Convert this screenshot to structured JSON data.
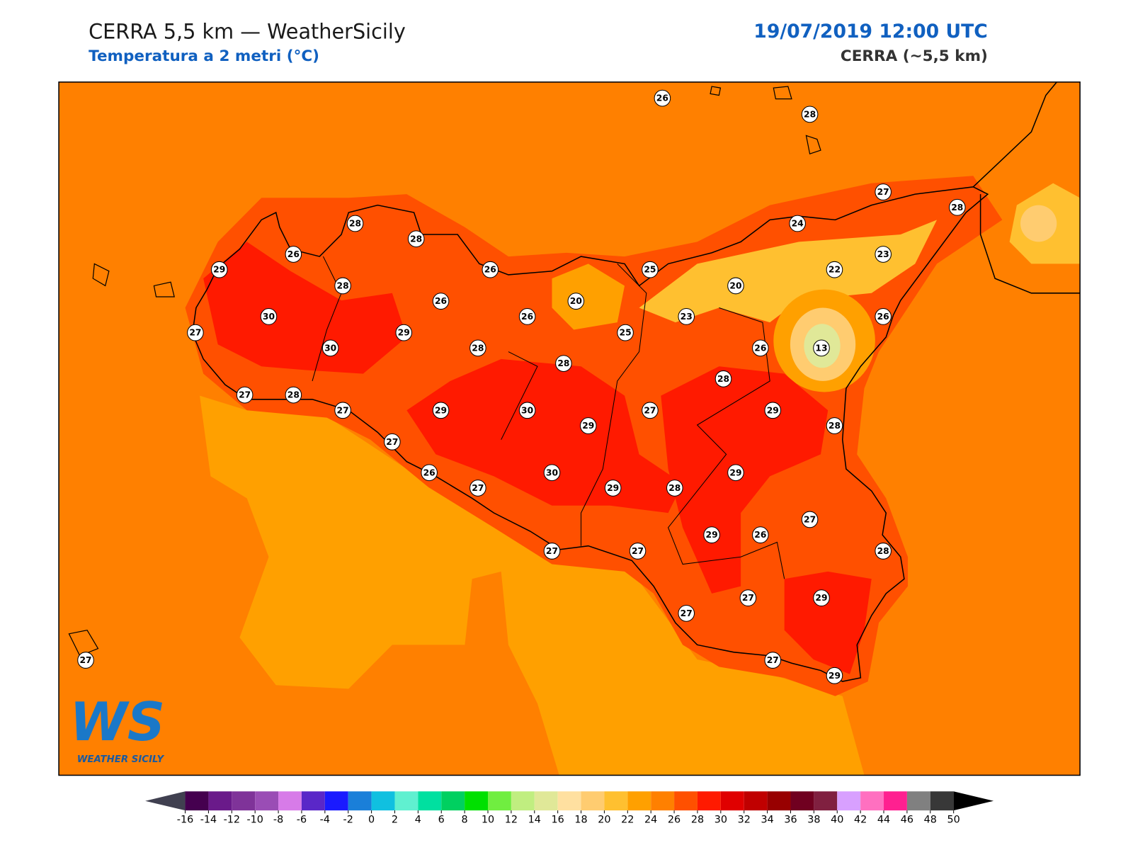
{
  "header": {
    "title": "CERRA 5,5 km — WeatherSicily",
    "subtitle": "Temperatura a 2 metri (°C)",
    "date": "19/07/2019 12:00 UTC",
    "model": "CERRA (~5,5 km)"
  },
  "stations": [
    26,
    28,
    27,
    28,
    24,
    28,
    28,
    26,
    23,
    29,
    26,
    25,
    22,
    28,
    20,
    26,
    20,
    30,
    26,
    23,
    26,
    27,
    29,
    25,
    30,
    28,
    26,
    13,
    28,
    28,
    27,
    28,
    27,
    29,
    30,
    27,
    29,
    29,
    28,
    27,
    26,
    30,
    29,
    29,
    28,
    27,
    27,
    29,
    26,
    27,
    27,
    28,
    27,
    29,
    27,
    27,
    29,
    27
  ],
  "colorbar": {
    "ticks": [
      -16,
      -14,
      -12,
      -10,
      -8,
      -6,
      -4,
      -2,
      0,
      2,
      4,
      6,
      8,
      10,
      12,
      14,
      16,
      18,
      20,
      22,
      24,
      26,
      28,
      30,
      32,
      34,
      36,
      38,
      40,
      42,
      44,
      46,
      48,
      50
    ],
    "colors": [
      "#45004f",
      "#6a1a8a",
      "#7f3399",
      "#9a4db5",
      "#d77be8",
      "#5a27c8",
      "#1a1aff",
      "#1a7fd9",
      "#10c0e0",
      "#60f0d0",
      "#00e0a0",
      "#00d060",
      "#00e000",
      "#70ee40",
      "#c0ee80",
      "#e0e898",
      "#ffe0a0",
      "#ffcc70",
      "#ffc030",
      "#ffa000",
      "#ff8000",
      "#ff5000",
      "#ff1a00",
      "#e00000",
      "#c00000",
      "#980000",
      "#700020",
      "#802040",
      "#d8a0ff",
      "#ff70c0",
      "#ff2090",
      "#808080",
      "#383838"
    ],
    "under_color": "#404050",
    "over_color": "#000000"
  },
  "logo": {
    "mark": "WS",
    "text": "WEATHER SICILY"
  }
}
